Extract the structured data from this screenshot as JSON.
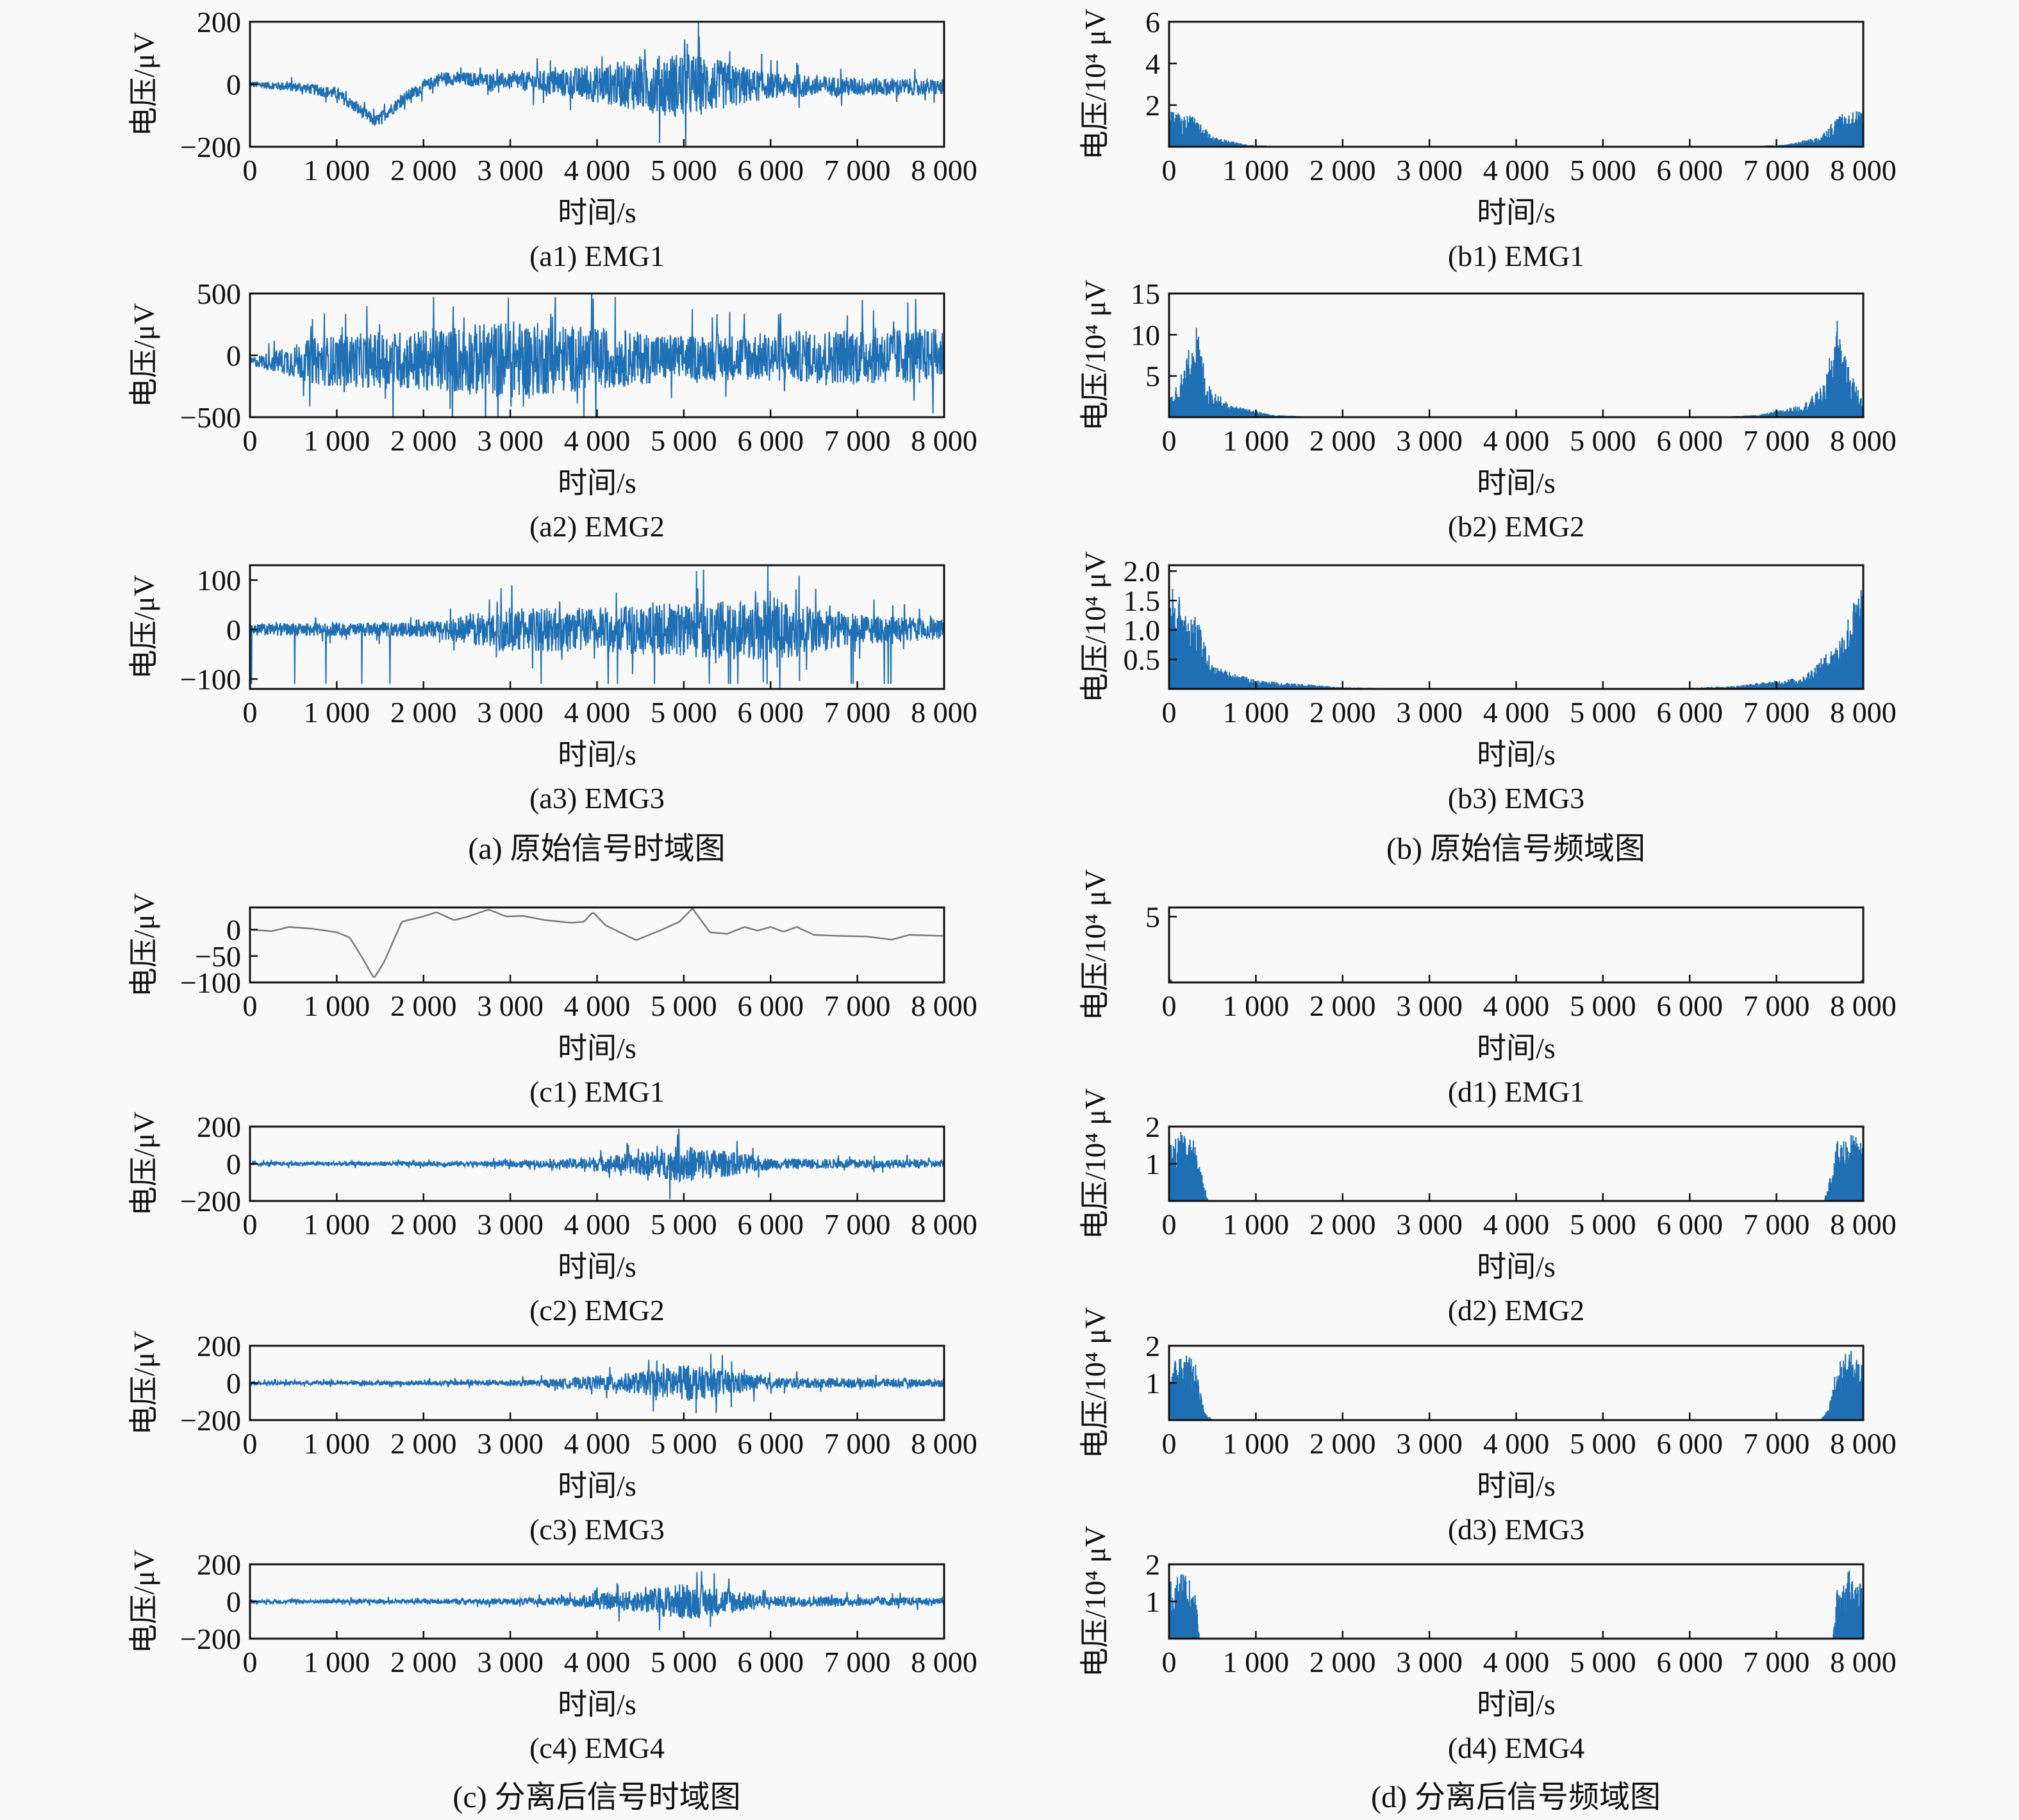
{
  "group_captions": {
    "a": "(a) 原始信号时域图",
    "b": "(b) 原始信号频域图",
    "c": "(c) 分离后信号时域图",
    "d": "(d) 分离后信号频域图"
  },
  "chart_data": [
    {
      "id": "a1",
      "type": "line",
      "caption": "(a1) EMG1",
      "xlabel": "时间/s",
      "ylabel": "电压/μV",
      "xlim": [
        0,
        8000
      ],
      "ylim": [
        -200,
        200
      ],
      "yticks": [
        -200,
        0,
        200
      ],
      "yticklabels": [
        "−200",
        "0",
        "200"
      ],
      "xticks": [
        0,
        1000,
        2000,
        3000,
        4000,
        5000,
        6000,
        7000,
        8000
      ],
      "xticklabels": [
        "0",
        "1 000",
        "2 000",
        "3 000",
        "4 000",
        "5 000",
        "6 000",
        "7 000",
        "8 000"
      ],
      "color": "#1f6fb4",
      "baseline": [
        [
          0,
          0
        ],
        [
          600,
          -10
        ],
        [
          1000,
          -30
        ],
        [
          1450,
          -120
        ],
        [
          1800,
          -40
        ],
        [
          2200,
          20
        ],
        [
          3000,
          10
        ],
        [
          4000,
          0
        ],
        [
          8000,
          -10
        ]
      ],
      "amplitude_envelope": [
        [
          0,
          10
        ],
        [
          1000,
          20
        ],
        [
          2000,
          20
        ],
        [
          3000,
          25
        ],
        [
          4000,
          60
        ],
        [
          5000,
          110
        ],
        [
          6000,
          40
        ],
        [
          7000,
          30
        ],
        [
          8000,
          25
        ]
      ]
    },
    {
      "id": "a2",
      "type": "line",
      "caption": "(a2) EMG2",
      "xlabel": "时间/s",
      "ylabel": "电压/μV",
      "xlim": [
        0,
        8000
      ],
      "ylim": [
        -500,
        500
      ],
      "yticks": [
        -500,
        0,
        500
      ],
      "yticklabels": [
        "−500",
        "0",
        "500"
      ],
      "xticks": [
        0,
        1000,
        2000,
        3000,
        4000,
        5000,
        6000,
        7000,
        8000
      ],
      "xticklabels": [
        "0",
        "1 000",
        "2 000",
        "3 000",
        "4 000",
        "5 000",
        "6 000",
        "7 000",
        "8 000"
      ],
      "color": "#1f6fb4",
      "baseline": [
        [
          0,
          -50
        ],
        [
          8000,
          0
        ]
      ],
      "amplitude_envelope": [
        [
          0,
          30
        ],
        [
          800,
          200
        ],
        [
          2000,
          250
        ],
        [
          3000,
          320
        ],
        [
          4000,
          250
        ],
        [
          5000,
          180
        ],
        [
          6000,
          200
        ],
        [
          7000,
          230
        ],
        [
          8000,
          220
        ]
      ]
    },
    {
      "id": "a3",
      "type": "line",
      "caption": "(a3) EMG3",
      "xlabel": "时间/s",
      "ylabel": "电压/μV",
      "xlim": [
        0,
        8000
      ],
      "ylim": [
        -120,
        130
      ],
      "yticks": [
        -100,
        0,
        100
      ],
      "yticklabels": [
        "−100",
        "0",
        "100"
      ],
      "xticks": [
        0,
        1000,
        2000,
        3000,
        4000,
        5000,
        6000,
        7000,
        8000
      ],
      "xticklabels": [
        "0",
        "1 000",
        "2 000",
        "3 000",
        "4 000",
        "5 000",
        "6 000",
        "7 000",
        "8 000"
      ],
      "color": "#1f6fb4",
      "baseline": [
        [
          0,
          0
        ],
        [
          8000,
          0
        ]
      ],
      "amplitude_envelope": [
        [
          0,
          12
        ],
        [
          2000,
          15
        ],
        [
          3000,
          45
        ],
        [
          4000,
          45
        ],
        [
          5000,
          55
        ],
        [
          6000,
          65
        ],
        [
          7000,
          30
        ],
        [
          8000,
          20
        ]
      ]
    },
    {
      "id": "b1",
      "type": "area",
      "caption": "(b1) EMG1",
      "xlabel": "时间/s",
      "ylabel": "电压/10⁴ μV",
      "xlim": [
        0,
        8000
      ],
      "ylim": [
        0,
        6
      ],
      "yticks": [
        2,
        4,
        6
      ],
      "yticklabels": [
        "2",
        "4",
        "6"
      ],
      "xticks": [
        0,
        1000,
        2000,
        3000,
        4000,
        5000,
        6000,
        7000,
        8000
      ],
      "xticklabels": [
        "0",
        "1 000",
        "2 000",
        "3 000",
        "4 000",
        "5 000",
        "6 000",
        "7 000",
        "8 000"
      ],
      "color": "#1f6fb4",
      "amplitude_envelope": [
        [
          0,
          1.8
        ],
        [
          300,
          1.5
        ],
        [
          500,
          0.5
        ],
        [
          900,
          0.1
        ],
        [
          1500,
          0
        ],
        [
          6500,
          0
        ],
        [
          7100,
          0.1
        ],
        [
          7500,
          0.5
        ],
        [
          7700,
          1.5
        ],
        [
          8000,
          1.8
        ]
      ]
    },
    {
      "id": "b2",
      "type": "area",
      "caption": "(b2) EMG2",
      "xlabel": "时间/s",
      "ylabel": "电压/10⁴ μV",
      "xlim": [
        0,
        8000
      ],
      "ylim": [
        0,
        15
      ],
      "yticks": [
        5,
        10,
        15
      ],
      "yticklabels": [
        "5",
        "10",
        "15"
      ],
      "xticks": [
        0,
        1000,
        2000,
        3000,
        4000,
        5000,
        6000,
        7000,
        8000
      ],
      "xticklabels": [
        "0",
        "1 000",
        "2 000",
        "3 000",
        "4 000",
        "5 000",
        "6 000",
        "7 000",
        "8 000"
      ],
      "color": "#1f6fb4",
      "amplitude_envelope": [
        [
          0,
          2
        ],
        [
          200,
          7
        ],
        [
          300,
          12
        ],
        [
          450,
          4
        ],
        [
          700,
          1.5
        ],
        [
          1200,
          0.3
        ],
        [
          1800,
          0
        ],
        [
          6200,
          0
        ],
        [
          6800,
          0.3
        ],
        [
          7300,
          1.5
        ],
        [
          7550,
          4
        ],
        [
          7700,
          12
        ],
        [
          7800,
          7
        ],
        [
          8000,
          2
        ]
      ]
    },
    {
      "id": "b3",
      "type": "area",
      "caption": "(b3) EMG3",
      "xlabel": "时间/s",
      "ylabel": "电压/10⁴ μV",
      "xlim": [
        0,
        8000
      ],
      "ylim": [
        0,
        2.1
      ],
      "yticks": [
        0.5,
        1.0,
        1.5,
        2.0
      ],
      "yticklabels": [
        "0.5",
        "1.0",
        "1.5",
        "2.0"
      ],
      "xticks": [
        0,
        1000,
        2000,
        3000,
        4000,
        5000,
        6000,
        7000,
        8000
      ],
      "xticklabels": [
        "0",
        "1 000",
        "2 000",
        "3 000",
        "4 000",
        "5 000",
        "6 000",
        "7 000",
        "8 000"
      ],
      "color": "#1f6fb4",
      "amplitude_envelope": [
        [
          0,
          1.8
        ],
        [
          300,
          1.3
        ],
        [
          500,
          0.4
        ],
        [
          1000,
          0.15
        ],
        [
          2000,
          0.03
        ],
        [
          3000,
          0
        ],
        [
          5500,
          0
        ],
        [
          6500,
          0.05
        ],
        [
          7300,
          0.2
        ],
        [
          7700,
          0.8
        ],
        [
          8000,
          1.9
        ]
      ]
    },
    {
      "id": "c1",
      "type": "line",
      "caption": "(c1) EMG1",
      "xlabel": "时间/s",
      "ylabel": "电压/μV",
      "xlim": [
        0,
        8000
      ],
      "ylim": [
        -100,
        42
      ],
      "yticks": [
        -100,
        -50,
        0
      ],
      "yticklabels": [
        "−100",
        "−50",
        "0"
      ],
      "xticks": [
        0,
        1000,
        2000,
        3000,
        4000,
        5000,
        6000,
        7000,
        8000
      ],
      "xticklabels": [
        "0",
        "1 000",
        "2 000",
        "3 000",
        "4 000",
        "5 000",
        "6 000",
        "7 000",
        "8 000"
      ],
      "color": "#7a7a7a",
      "curve": [
        [
          0,
          0
        ],
        [
          250,
          -3
        ],
        [
          450,
          5
        ],
        [
          700,
          2
        ],
        [
          1000,
          -5
        ],
        [
          1150,
          -15
        ],
        [
          1300,
          -55
        ],
        [
          1430,
          -92
        ],
        [
          1550,
          -60
        ],
        [
          1750,
          15
        ],
        [
          2000,
          25
        ],
        [
          2150,
          33
        ],
        [
          2350,
          18
        ],
        [
          2500,
          24
        ],
        [
          2750,
          38
        ],
        [
          2950,
          25
        ],
        [
          3150,
          26
        ],
        [
          3400,
          18
        ],
        [
          3700,
          13
        ],
        [
          3850,
          15
        ],
        [
          3950,
          33
        ],
        [
          4100,
          8
        ],
        [
          4450,
          -20
        ],
        [
          4750,
          0
        ],
        [
          4950,
          15
        ],
        [
          5100,
          40
        ],
        [
          5300,
          -5
        ],
        [
          5500,
          -8
        ],
        [
          5700,
          5
        ],
        [
          5850,
          -2
        ],
        [
          6000,
          5
        ],
        [
          6150,
          -4
        ],
        [
          6300,
          5
        ],
        [
          6500,
          -10
        ],
        [
          6800,
          -12
        ],
        [
          7100,
          -13
        ],
        [
          7400,
          -19
        ],
        [
          7600,
          -10
        ],
        [
          8000,
          -12
        ]
      ]
    },
    {
      "id": "c2",
      "type": "line",
      "caption": "(c2) EMG2",
      "xlabel": "时间/s",
      "ylabel": "电压/μV",
      "xlim": [
        0,
        8000
      ],
      "ylim": [
        -200,
        200
      ],
      "yticks": [
        -200,
        0,
        200
      ],
      "yticklabels": [
        "−200",
        "0",
        "200"
      ],
      "xticks": [
        0,
        1000,
        2000,
        3000,
        4000,
        5000,
        6000,
        7000,
        8000
      ],
      "xticklabels": [
        "0",
        "1 000",
        "2 000",
        "3 000",
        "4 000",
        "5 000",
        "6 000",
        "7 000",
        "8 000"
      ],
      "color": "#1f6fb4",
      "baseline": [
        [
          0,
          0
        ],
        [
          8000,
          0
        ]
      ],
      "amplitude_envelope": [
        [
          0,
          10
        ],
        [
          2000,
          12
        ],
        [
          3500,
          20
        ],
        [
          4500,
          60
        ],
        [
          5000,
          100
        ],
        [
          5500,
          70
        ],
        [
          6000,
          30
        ],
        [
          8000,
          20
        ]
      ]
    },
    {
      "id": "c3",
      "type": "line",
      "caption": "(c3) EMG3",
      "xlabel": "时间/s",
      "ylabel": "电压/μV",
      "xlim": [
        0,
        8000
      ],
      "ylim": [
        -200,
        200
      ],
      "yticks": [
        -200,
        0,
        200
      ],
      "yticklabels": [
        "−200",
        "0",
        "200"
      ],
      "xticks": [
        0,
        1000,
        2000,
        3000,
        4000,
        5000,
        6000,
        7000,
        8000
      ],
      "xticklabels": [
        "0",
        "1 000",
        "2 000",
        "3 000",
        "4 000",
        "5 000",
        "6 000",
        "7 000",
        "8 000"
      ],
      "color": "#1f6fb4",
      "baseline": [
        [
          0,
          0
        ],
        [
          8000,
          0
        ]
      ],
      "amplitude_envelope": [
        [
          0,
          10
        ],
        [
          2000,
          12
        ],
        [
          3500,
          20
        ],
        [
          4500,
          60
        ],
        [
          5000,
          100
        ],
        [
          5500,
          70
        ],
        [
          6000,
          30
        ],
        [
          8000,
          20
        ]
      ]
    },
    {
      "id": "c4",
      "type": "line",
      "caption": "(c4) EMG4",
      "xlabel": "时间/s",
      "ylabel": "电压/μV",
      "xlim": [
        0,
        8000
      ],
      "ylim": [
        -200,
        200
      ],
      "yticks": [
        -200,
        0,
        200
      ],
      "yticklabels": [
        "−200",
        "0",
        "200"
      ],
      "xticks": [
        0,
        1000,
        2000,
        3000,
        4000,
        5000,
        6000,
        7000,
        8000
      ],
      "xticklabels": [
        "0",
        "1 000",
        "2 000",
        "3 000",
        "4 000",
        "5 000",
        "6 000",
        "7 000",
        "8 000"
      ],
      "color": "#1f6fb4",
      "baseline": [
        [
          0,
          0
        ],
        [
          8000,
          0
        ]
      ],
      "amplitude_envelope": [
        [
          0,
          10
        ],
        [
          2000,
          12
        ],
        [
          3500,
          20
        ],
        [
          4500,
          60
        ],
        [
          5000,
          100
        ],
        [
          5500,
          70
        ],
        [
          6000,
          30
        ],
        [
          8000,
          20
        ]
      ]
    },
    {
      "id": "d1",
      "type": "area",
      "caption": "(d1) EMG1",
      "xlabel": "时间/s",
      "ylabel": "电压/10⁴ μV",
      "xlim": [
        0,
        8000
      ],
      "ylim": [
        0,
        5.7
      ],
      "yticks": [
        5
      ],
      "yticklabels": [
        "5"
      ],
      "xticks": [
        0,
        1000,
        2000,
        3000,
        4000,
        5000,
        6000,
        7000,
        8000
      ],
      "xticklabels": [
        "0",
        "1 000",
        "2 000",
        "3 000",
        "4 000",
        "5 000",
        "6 000",
        "7 000",
        "8 000"
      ],
      "color": "#555555",
      "amplitude_envelope": [
        [
          0,
          0.5
        ],
        [
          40,
          0
        ],
        [
          7960,
          0
        ],
        [
          8000,
          0.5
        ]
      ]
    },
    {
      "id": "d2",
      "type": "area",
      "caption": "(d2) EMG2",
      "xlabel": "时间/s",
      "ylabel": "电压/10⁴ μV",
      "xlim": [
        0,
        8000
      ],
      "ylim": [
        0,
        2
      ],
      "yticks": [
        1,
        2
      ],
      "yticklabels": [
        "1",
        "2"
      ],
      "xticks": [
        0,
        1000,
        2000,
        3000,
        4000,
        5000,
        6000,
        7000,
        8000
      ],
      "xticklabels": [
        "0",
        "1 000",
        "2 000",
        "3 000",
        "4 000",
        "5 000",
        "6 000",
        "7 000",
        "8 000"
      ],
      "color": "#1f6fb4",
      "amplitude_envelope": [
        [
          0,
          1.5
        ],
        [
          150,
          1.9
        ],
        [
          300,
          1.6
        ],
        [
          400,
          0.5
        ],
        [
          450,
          0
        ],
        [
          7550,
          0
        ],
        [
          7600,
          0.5
        ],
        [
          7700,
          1.6
        ],
        [
          7850,
          1.9
        ],
        [
          8000,
          1.5
        ]
      ]
    },
    {
      "id": "d3",
      "type": "area",
      "caption": "(d3) EMG3",
      "xlabel": "时间/s",
      "ylabel": "电压/10⁴ μV",
      "xlim": [
        0,
        8000
      ],
      "ylim": [
        0,
        2
      ],
      "yticks": [
        1,
        2
      ],
      "yticklabels": [
        "1",
        "2"
      ],
      "xticks": [
        0,
        1000,
        2000,
        3000,
        4000,
        5000,
        6000,
        7000,
        8000
      ],
      "xticklabels": [
        "0",
        "1 000",
        "2 000",
        "3 000",
        "4 000",
        "5 000",
        "6 000",
        "7 000",
        "8 000"
      ],
      "color": "#1f6fb4",
      "amplitude_envelope": [
        [
          0,
          1.5
        ],
        [
          150,
          1.9
        ],
        [
          300,
          1.6
        ],
        [
          400,
          0.3
        ],
        [
          500,
          0
        ],
        [
          7500,
          0
        ],
        [
          7600,
          0.3
        ],
        [
          7700,
          1.6
        ],
        [
          7850,
          1.9
        ],
        [
          8000,
          1.5
        ]
      ]
    },
    {
      "id": "d4",
      "type": "area",
      "caption": "(d4) EMG4",
      "xlabel": "时间/s",
      "ylabel": "电压/10⁴ μV",
      "xlim": [
        0,
        8000
      ],
      "ylim": [
        0,
        2
      ],
      "yticks": [
        1,
        2
      ],
      "yticklabels": [
        "1",
        "2"
      ],
      "xticks": [
        0,
        1000,
        2000,
        3000,
        4000,
        5000,
        6000,
        7000,
        8000
      ],
      "xticklabels": [
        "0",
        "1 000",
        "2 000",
        "3 000",
        "4 000",
        "5 000",
        "6 000",
        "7 000",
        "8 000"
      ],
      "color": "#1f6fb4",
      "amplitude_envelope": [
        [
          0,
          1.5
        ],
        [
          150,
          1.9
        ],
        [
          300,
          1.4
        ],
        [
          350,
          0
        ],
        [
          7650,
          0
        ],
        [
          7700,
          1.4
        ],
        [
          7850,
          1.9
        ],
        [
          8000,
          1.5
        ]
      ]
    }
  ]
}
